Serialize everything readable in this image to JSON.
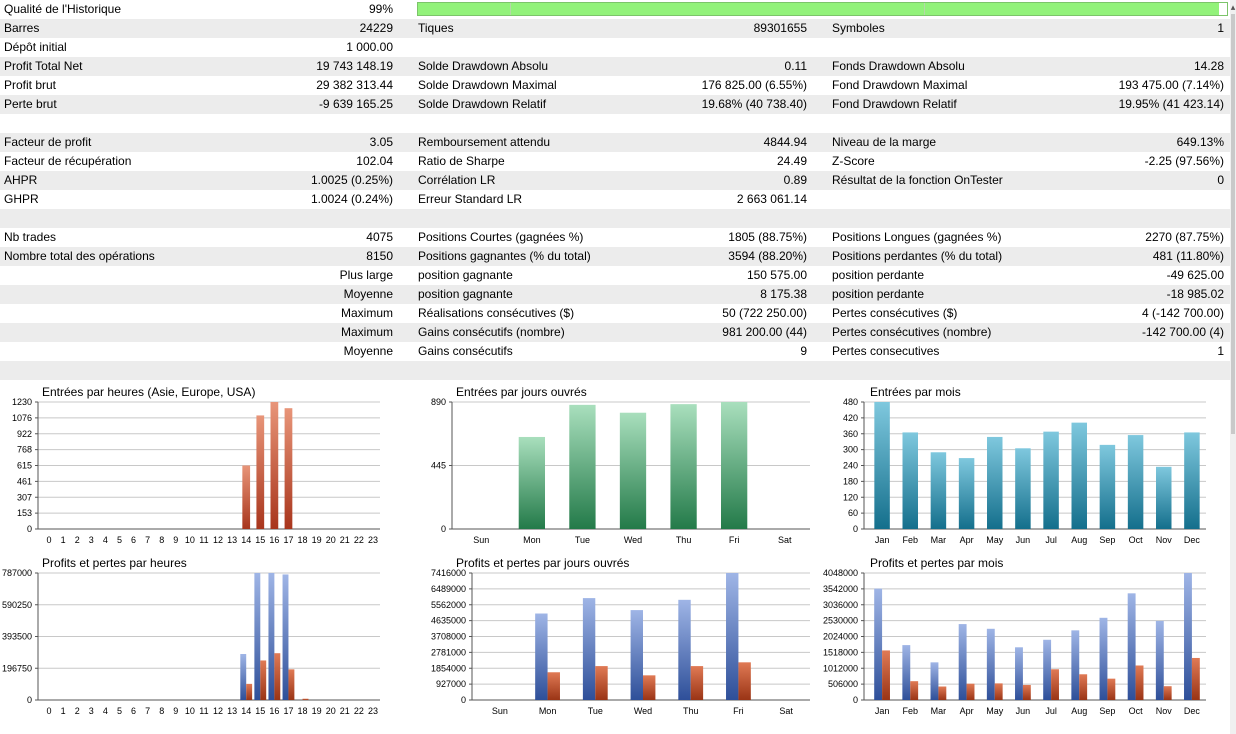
{
  "colors": {
    "alt_row": "#ececec",
    "quality_bar": "#92f27a",
    "hours_bar": "#c0392b",
    "weekdays_bar": "#3d9a63",
    "months_bar": "#2a8fae",
    "profit_bar": "#3c5da8",
    "loss_bar": "#b0401f"
  },
  "quality": {
    "label": "Qualité de l'Historique",
    "value": "99%",
    "bar_fraction": 0.99
  },
  "scroll_icon": "chevron-up-icon",
  "rows": [
    {
      "alt": true,
      "c": [
        [
          "Barres",
          "24229"
        ],
        [
          "Tiques",
          "89301655"
        ],
        [
          "Symboles",
          "1"
        ]
      ]
    },
    {
      "alt": false,
      "c": [
        [
          "Dépôt initial",
          "1 000.00"
        ],
        [
          "",
          ""
        ],
        [
          "",
          ""
        ]
      ]
    },
    {
      "alt": true,
      "c": [
        [
          "Profit Total Net",
          "19 743 148.19"
        ],
        [
          "Solde Drawdown Absolu",
          "0.11"
        ],
        [
          "Fonds Drawdown Absolu",
          "14.28"
        ]
      ]
    },
    {
      "alt": false,
      "c": [
        [
          "Profit brut",
          "29 382 313.44"
        ],
        [
          "Solde Drawdown Maximal",
          "176 825.00 (6.55%)"
        ],
        [
          "Fond Drawdown Maximal",
          "193 475.00 (7.14%)"
        ]
      ]
    },
    {
      "alt": true,
      "c": [
        [
          "Perte brut",
          "-9 639 165.25"
        ],
        [
          "Solde Drawdown Relatif",
          "19.68% (40 738.40)"
        ],
        [
          "Fond Drawdown Relatif",
          "19.95% (41 423.14)"
        ]
      ]
    },
    {
      "alt": false,
      "c": [
        [
          "",
          ""
        ],
        [
          "",
          ""
        ],
        [
          "",
          ""
        ]
      ]
    },
    {
      "alt": true,
      "c": [
        [
          "Facteur de profit",
          "3.05"
        ],
        [
          "Remboursement attendu",
          "4844.94"
        ],
        [
          "Niveau de la marge",
          "649.13%"
        ]
      ]
    },
    {
      "alt": false,
      "c": [
        [
          "Facteur de récupération",
          "102.04"
        ],
        [
          "Ratio de Sharpe",
          "24.49"
        ],
        [
          "Z-Score",
          "-2.25 (97.56%)"
        ]
      ]
    },
    {
      "alt": true,
      "c": [
        [
          "AHPR",
          "1.0025 (0.25%)"
        ],
        [
          "Corrélation LR",
          "0.89"
        ],
        [
          "Résultat de la fonction OnTester",
          "0"
        ]
      ]
    },
    {
      "alt": false,
      "c": [
        [
          "GHPR",
          "1.0024 (0.24%)"
        ],
        [
          "Erreur Standard LR",
          "2 663 061.14"
        ],
        [
          "",
          ""
        ]
      ]
    },
    {
      "alt": true,
      "c": [
        [
          "",
          ""
        ],
        [
          "",
          ""
        ],
        [
          "",
          ""
        ]
      ]
    },
    {
      "alt": false,
      "c": [
        [
          "Nb trades",
          "4075"
        ],
        [
          "Positions Courtes (gagnées %)",
          "1805 (88.75%)"
        ],
        [
          "Positions Longues (gagnées %)",
          "2270 (87.75%)"
        ]
      ]
    },
    {
      "alt": true,
      "c": [
        [
          "Nombre total des opérations",
          "8150"
        ],
        [
          "Positions gagnantes (% du total)",
          "3594 (88.20%)"
        ],
        [
          "Positions perdantes (% du total)",
          "481 (11.80%)"
        ]
      ]
    },
    {
      "alt": false,
      "sub": "Plus large",
      "c": [
        [
          "",
          ""
        ],
        [
          "position gagnante",
          "150 575.00"
        ],
        [
          "position perdante",
          "-49 625.00"
        ]
      ]
    },
    {
      "alt": true,
      "sub": "Moyenne",
      "c": [
        [
          "",
          ""
        ],
        [
          "position gagnante",
          "8 175.38"
        ],
        [
          "position perdante",
          "-18 985.02"
        ]
      ]
    },
    {
      "alt": false,
      "sub": "Maximum",
      "c": [
        [
          "",
          ""
        ],
        [
          "Réalisations consécutives ($)",
          "50 (722 250.00)"
        ],
        [
          "Pertes consécutives ($)",
          "4 (-142 700.00)"
        ]
      ]
    },
    {
      "alt": true,
      "sub": "Maximum",
      "c": [
        [
          "",
          ""
        ],
        [
          "Gains consécutifs (nombre)",
          "981 200.00 (44)"
        ],
        [
          "Pertes consécutives (nombre)",
          "-142 700.00 (4)"
        ]
      ]
    },
    {
      "alt": false,
      "sub": "Moyenne",
      "c": [
        [
          "",
          ""
        ],
        [
          "Gains consécutifs",
          "9"
        ],
        [
          "Pertes consecutives",
          "1"
        ]
      ]
    },
    {
      "alt": true,
      "c": [
        [
          "",
          ""
        ],
        [
          "",
          ""
        ],
        [
          "",
          ""
        ]
      ]
    }
  ],
  "chart_data": [
    {
      "type": "bar",
      "title": "Entrées par heures (Asie, Europe, USA)",
      "categories": [
        "0",
        "1",
        "2",
        "3",
        "4",
        "5",
        "6",
        "7",
        "8",
        "9",
        "10",
        "11",
        "12",
        "13",
        "14",
        "15",
        "16",
        "17",
        "18",
        "19",
        "20",
        "21",
        "22",
        "23"
      ],
      "ticks": [
        "1230",
        "1076",
        "922",
        "768",
        "615",
        "461",
        "307",
        "153",
        "0"
      ],
      "ylim": [
        0,
        1230
      ],
      "series": [
        {
          "values": [
            0,
            0,
            0,
            0,
            0,
            0,
            0,
            0,
            0,
            0,
            0,
            0,
            0,
            0,
            615,
            1100,
            1230,
            1170,
            0,
            0,
            0,
            0,
            0,
            0
          ]
        }
      ]
    },
    {
      "type": "bar",
      "title": "Entrées par jours ouvrés",
      "categories": [
        "Sun",
        "Mon",
        "Tue",
        "Wed",
        "Thu",
        "Fri",
        "Sat"
      ],
      "ticks": [
        "890",
        "445",
        "0"
      ],
      "ylim": [
        0,
        890
      ],
      "series": [
        {
          "values": [
            0,
            645,
            870,
            815,
            875,
            890,
            0
          ]
        }
      ]
    },
    {
      "type": "bar",
      "title": "Entrées par mois",
      "categories": [
        "Jan",
        "Feb",
        "Mar",
        "Apr",
        "May",
        "Jun",
        "Jul",
        "Aug",
        "Sep",
        "Oct",
        "Nov",
        "Dec"
      ],
      "ticks": [
        "480",
        "420",
        "360",
        "300",
        "240",
        "180",
        "120",
        "60",
        "0"
      ],
      "ylim": [
        0,
        480
      ],
      "series": [
        {
          "values": [
            480,
            365,
            290,
            268,
            348,
            305,
            368,
            402,
            318,
            355,
            235,
            365
          ]
        }
      ]
    },
    {
      "type": "bar",
      "title": "Profits et pertes par heures",
      "categories": [
        "0",
        "1",
        "2",
        "3",
        "4",
        "5",
        "6",
        "7",
        "8",
        "9",
        "10",
        "11",
        "12",
        "13",
        "14",
        "15",
        "16",
        "17",
        "18",
        "19",
        "20",
        "21",
        "22",
        "23"
      ],
      "ticks": [
        "787000",
        "590250",
        "393500",
        "196750",
        "0"
      ],
      "ylim": [
        0,
        787000
      ],
      "series": [
        {
          "values": [
            0,
            0,
            0,
            0,
            0,
            0,
            0,
            0,
            0,
            0,
            0,
            0,
            0,
            0,
            285000,
            787000,
            787000,
            778000,
            0,
            0,
            0,
            0,
            0,
            0
          ]
        },
        {
          "values": [
            0,
            0,
            0,
            0,
            0,
            0,
            0,
            0,
            0,
            0,
            0,
            0,
            0,
            0,
            100000,
            245000,
            290000,
            190000,
            8000,
            0,
            0,
            0,
            0,
            0
          ]
        }
      ]
    },
    {
      "type": "bar",
      "title": "Profits et pertes par jours ouvrés",
      "categories": [
        "Sun",
        "Mon",
        "Tue",
        "Wed",
        "Thu",
        "Fri",
        "Sat"
      ],
      "ticks": [
        "7416000",
        "6489000",
        "5562000",
        "4635000",
        "3708000",
        "2781000",
        "1854000",
        "927000",
        "0"
      ],
      "ylim": [
        0,
        7416000
      ],
      "series": [
        {
          "values": [
            0,
            5050000,
            5950000,
            5250000,
            5850000,
            7416000,
            0
          ]
        },
        {
          "values": [
            0,
            1620000,
            1980000,
            1440000,
            1980000,
            2200000,
            0
          ]
        }
      ]
    },
    {
      "type": "bar",
      "title": "Profits et pertes par mois",
      "categories": [
        "Jan",
        "Feb",
        "Mar",
        "Apr",
        "May",
        "Jun",
        "Jul",
        "Aug",
        "Sep",
        "Oct",
        "Nov",
        "Dec"
      ],
      "ticks": [
        "4048000",
        "3542000",
        "3036000",
        "2530000",
        "2024000",
        "1518000",
        "1012000",
        "506000",
        "0"
      ],
      "ylim": [
        0,
        4048000
      ],
      "series": [
        {
          "values": [
            3550000,
            1750000,
            1200000,
            2420000,
            2270000,
            1680000,
            1920000,
            2220000,
            2620000,
            3400000,
            2520000,
            4048000
          ]
        },
        {
          "values": [
            1580000,
            600000,
            430000,
            520000,
            530000,
            480000,
            980000,
            820000,
            680000,
            1100000,
            440000,
            1340000
          ]
        }
      ]
    }
  ]
}
